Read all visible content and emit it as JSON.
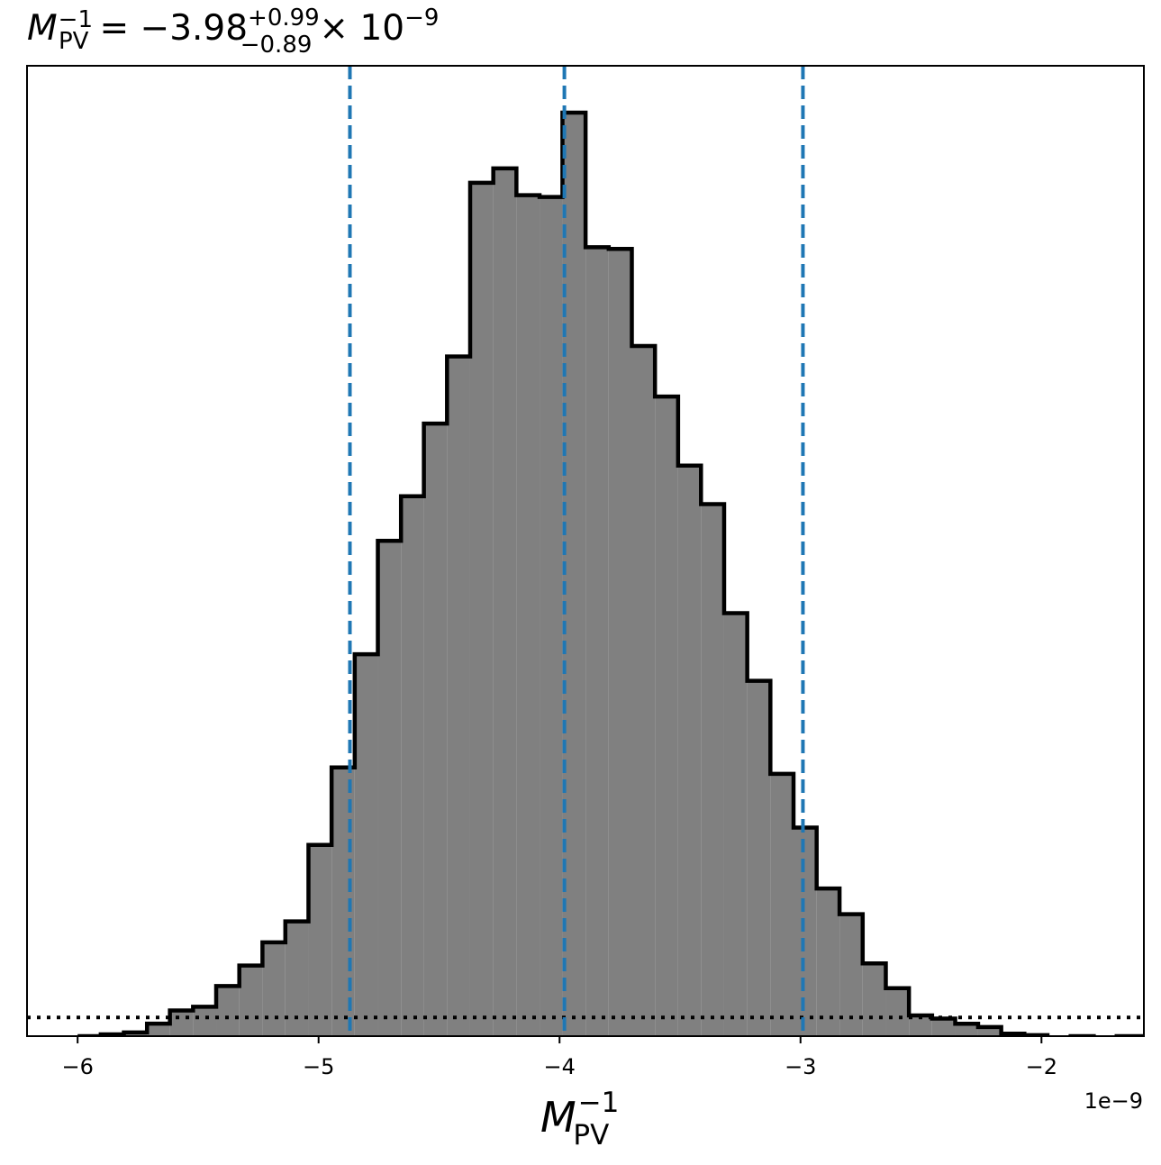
{
  "chart_data": {
    "type": "histogram",
    "title": {
      "symbol": "M",
      "symbol_sub": "PV",
      "symbol_sup": "−1",
      "equals": "= −3.98",
      "plus": "+0.99",
      "minus": "−0.89",
      "times": "× 10",
      "exp": "−9"
    },
    "xlabel": {
      "symbol": "M",
      "sub": "PV",
      "sup": "−1"
    },
    "x_offset_label": "1e−9",
    "xlim": [
      -6.21,
      -1.575
    ],
    "ylim": [
      0,
      1.0
    ],
    "xticks": [
      {
        "value": -6,
        "label": "−6"
      },
      {
        "value": -5,
        "label": "−5"
      },
      {
        "value": -4,
        "label": "−4"
      },
      {
        "value": -3,
        "label": "−3"
      },
      {
        "value": -2,
        "label": "−2"
      }
    ],
    "bin_edges": [
      -6.0,
      -5.904,
      -5.808,
      -5.712,
      -5.617,
      -5.521,
      -5.425,
      -5.329,
      -5.233,
      -5.138,
      -5.042,
      -4.946,
      -4.85,
      -4.754,
      -4.658,
      -4.563,
      -4.467,
      -4.371,
      -4.275,
      -4.179,
      -4.083,
      -3.988,
      -3.892,
      -3.796,
      -3.7,
      -3.604,
      -3.508,
      -3.413,
      -3.317,
      -3.221,
      -3.125,
      -3.029,
      -2.933,
      -2.838,
      -2.742,
      -2.646,
      -2.55,
      -2.454,
      -2.358,
      -2.263,
      -2.167,
      -2.071,
      -1.975,
      -1.879,
      -1.783,
      -1.688,
      -1.575
    ],
    "counts": [
      0.0,
      0.0019,
      0.0038,
      0.0129,
      0.0265,
      0.0303,
      0.0518,
      0.0729,
      0.0969,
      0.1185,
      0.1974,
      0.2774,
      0.3943,
      0.5114,
      0.5575,
      0.6324,
      0.7017,
      0.8811,
      0.8959,
      0.8683,
      0.8664,
      0.9535,
      0.8146,
      0.8128,
      0.7126,
      0.6604,
      0.5891,
      0.5493,
      0.4368,
      0.3669,
      0.2708,
      0.2154,
      0.1525,
      0.1259,
      0.0751,
      0.0495,
      0.0214,
      0.0181,
      0.0128,
      0.0094,
      0.0026,
      0.0011,
      -0.003,
      0.0,
      -0.003,
      0.0
    ],
    "counts_note": "",
    "vlines": [
      {
        "x": -4.87,
        "style": "dashed",
        "color": "#1f77b4"
      },
      {
        "x": -3.98,
        "style": "dashed",
        "color": "#1f77b4"
      },
      {
        "x": -2.99,
        "style": "dashed",
        "color": "#1f77b4"
      }
    ],
    "hline": {
      "y": 0.0193,
      "style": "dotted",
      "color": "#000000"
    },
    "fill_color": "#808080",
    "edge_color": "#000000"
  }
}
